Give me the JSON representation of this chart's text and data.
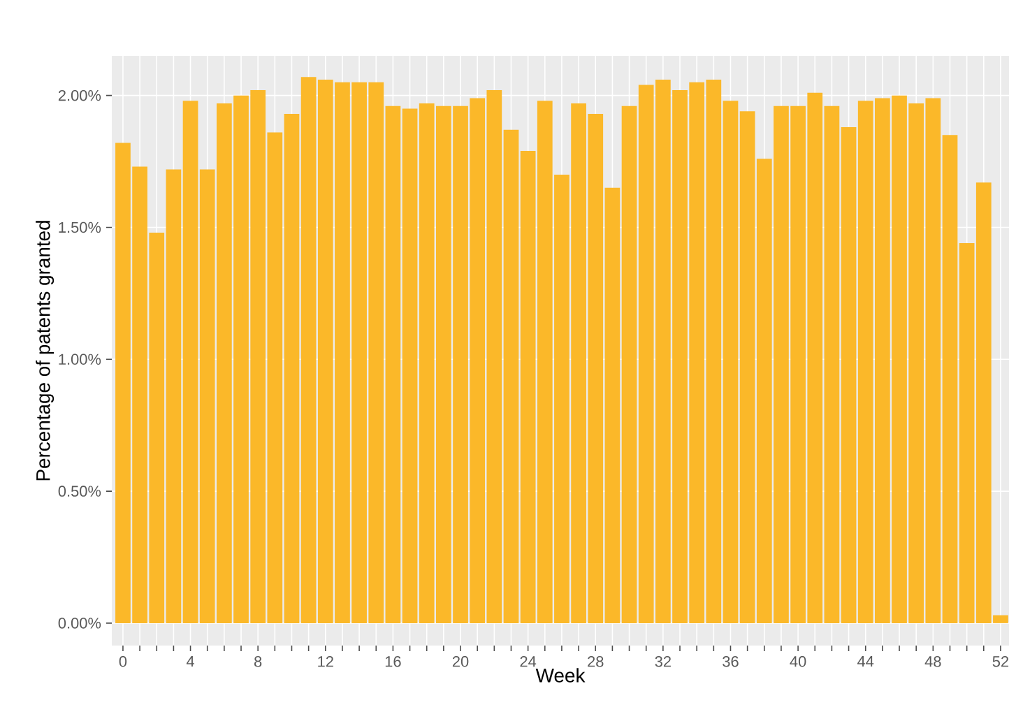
{
  "chart_data": {
    "type": "bar",
    "xlabel": "Week",
    "ylabel": "Percentage of patents granted",
    "color": "#fbb829",
    "x": [
      0,
      1,
      2,
      3,
      4,
      5,
      6,
      7,
      8,
      9,
      10,
      11,
      12,
      13,
      14,
      15,
      16,
      17,
      18,
      19,
      20,
      21,
      22,
      23,
      24,
      25,
      26,
      27,
      28,
      29,
      30,
      31,
      32,
      33,
      34,
      35,
      36,
      37,
      38,
      39,
      40,
      41,
      42,
      43,
      44,
      45,
      46,
      47,
      48,
      49,
      50,
      51,
      52
    ],
    "values": [
      1.82,
      1.73,
      1.48,
      1.72,
      1.98,
      1.72,
      1.97,
      2.0,
      2.02,
      1.86,
      1.93,
      2.07,
      2.06,
      2.05,
      2.05,
      2.05,
      1.96,
      1.95,
      1.97,
      1.96,
      1.96,
      1.99,
      2.02,
      1.87,
      1.79,
      1.98,
      1.7,
      1.97,
      1.93,
      1.65,
      1.96,
      2.04,
      2.06,
      2.02,
      2.05,
      2.06,
      1.98,
      1.94,
      1.76,
      1.96,
      1.96,
      2.01,
      1.96,
      1.88,
      1.98,
      1.99,
      2.0,
      1.97,
      1.99,
      1.85,
      1.44,
      1.67,
      0.03
    ],
    "xlim": [
      -0.66,
      52.5
    ],
    "ylim": [
      -0.085,
      2.15
    ],
    "xticks": [
      0,
      {
        "value": 1,
        "label": null
      },
      {
        "value": 2,
        "label": null
      },
      {
        "value": 3,
        "label": null
      },
      4,
      {
        "value": 5,
        "label": null
      },
      {
        "value": 6,
        "label": null
      },
      {
        "value": 7,
        "label": null
      },
      8,
      {
        "value": 9,
        "label": null
      },
      {
        "value": 10,
        "label": null
      },
      {
        "value": 11,
        "label": null
      },
      12,
      {
        "value": 13,
        "label": null
      },
      {
        "value": 14,
        "label": null
      },
      {
        "value": 15,
        "label": null
      },
      16,
      {
        "value": 17,
        "label": null
      },
      {
        "value": 18,
        "label": null
      },
      {
        "value": 19,
        "label": null
      },
      20,
      {
        "value": 21,
        "label": null
      },
      {
        "value": 22,
        "label": null
      },
      {
        "value": 23,
        "label": null
      },
      24,
      {
        "value": 25,
        "label": null
      },
      {
        "value": 26,
        "label": null
      },
      {
        "value": 27,
        "label": null
      },
      28,
      {
        "value": 29,
        "label": null
      },
      {
        "value": 30,
        "label": null
      },
      {
        "value": 31,
        "label": null
      },
      32,
      {
        "value": 33,
        "label": null
      },
      {
        "value": 34,
        "label": null
      },
      {
        "value": 35,
        "label": null
      },
      36,
      {
        "value": 37,
        "label": null
      },
      {
        "value": 38,
        "label": null
      },
      {
        "value": 39,
        "label": null
      },
      40,
      {
        "value": 41,
        "label": null
      },
      {
        "value": 42,
        "label": null
      },
      {
        "value": 43,
        "label": null
      },
      44,
      {
        "value": 45,
        "label": null
      },
      {
        "value": 46,
        "label": null
      },
      {
        "value": 47,
        "label": null
      },
      48,
      {
        "value": 49,
        "label": null
      },
      {
        "value": 50,
        "label": null
      },
      {
        "value": 51,
        "label": null
      },
      52
    ],
    "yticks": [
      {
        "value": 0,
        "label": "0.00%"
      },
      {
        "value": 0.5,
        "label": "0.50%"
      },
      {
        "value": 1,
        "label": "1.00%"
      },
      {
        "value": 1.5,
        "label": "1.50%"
      },
      {
        "value": 2,
        "label": "2.00%"
      }
    ],
    "grid": true
  }
}
